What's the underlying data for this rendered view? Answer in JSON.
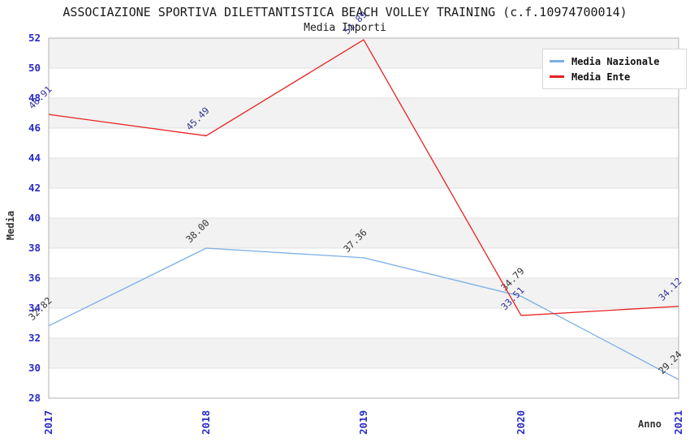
{
  "header": {
    "title": "ASSOCIAZIONE SPORTIVA DILETTANTISTICA BEACH VOLLEY TRAINING (c.f.10974700014)",
    "subtitle": "Media Importi"
  },
  "legend": {
    "items": [
      {
        "label": "Media Nazionale",
        "swatch": "line",
        "color": "#7aafe6"
      },
      {
        "label": "Media Ente",
        "swatch": "line",
        "color": "#e62222"
      }
    ]
  },
  "chart_data": {
    "type": "line",
    "title": "ASSOCIAZIONE SPORTIVA DILETTANTISTICA BEACH VOLLEY TRAINING (c.f.10974700014)",
    "subtitle": "Media Importi",
    "xlabel": "Anno",
    "ylabel": "Media",
    "categories": [
      "2017",
      "2018",
      "2019",
      "2020",
      "2021"
    ],
    "series": [
      {
        "name": "Media Nazionale",
        "color": "#7aafe6",
        "label_color": "#333333",
        "values": [
          32.82,
          38.0,
          37.36,
          34.79,
          29.24
        ],
        "labels": [
          "32.82",
          "38.00",
          "37.36",
          "34.79",
          "29.24"
        ]
      },
      {
        "name": "Media Ente",
        "color": "#e62222",
        "label_color": "#333399",
        "values": [
          46.91,
          45.49,
          51.89,
          33.51,
          34.12
        ],
        "labels": [
          "46.91",
          "45.49",
          "51.89",
          "33.51",
          "34.12"
        ]
      }
    ],
    "ylim": [
      28,
      52
    ],
    "ytick_step": 2,
    "grid": "horizontal-bands",
    "legend_position": "top-right",
    "colors": {
      "axis_tick_label": "#2a2ac8",
      "band_gray": "#f2f2f2",
      "band_white": "#ffffff",
      "grid_line": "#e0e0e0",
      "plot_border": "#b3b3b3"
    }
  }
}
